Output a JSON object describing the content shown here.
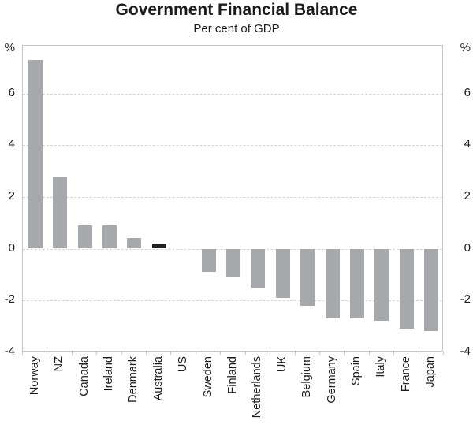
{
  "chart_data": {
    "type": "bar",
    "title": "Government Financial Balance",
    "subtitle": "Per cent of GDP",
    "unit_label": "%",
    "categories": [
      "Norway",
      "NZ",
      "Canada",
      "Ireland",
      "Denmark",
      "Australia",
      "US",
      "Sweden",
      "Finland",
      "Netherlands",
      "UK",
      "Belgium",
      "Germany",
      "Spain",
      "Italy",
      "France",
      "Japan"
    ],
    "values": [
      7.3,
      2.8,
      0.9,
      0.9,
      0.4,
      0.2,
      0.0,
      -0.9,
      -1.1,
      -1.5,
      -1.9,
      -2.2,
      -2.7,
      -2.7,
      -2.8,
      -3.1,
      -3.2
    ],
    "highlight_category": "Australia",
    "y_ticks": [
      6,
      4,
      2,
      0,
      -2,
      -4
    ],
    "ylim": [
      -4,
      7.8
    ],
    "xlabel": "",
    "ylabel": "%",
    "grid": "horizontal-dashed",
    "legend": "none",
    "colors": {
      "bar": "#a6a8ab",
      "highlight_bar": "#221e1f",
      "gridline": "#d4d4d4",
      "axis_border": "#c6c6c6",
      "text": "#1c1c1c"
    }
  }
}
